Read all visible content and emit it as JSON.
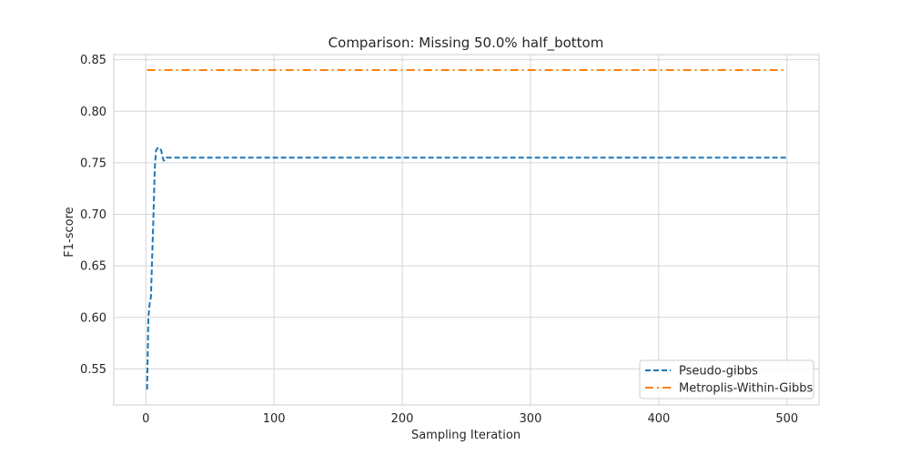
{
  "chart_data": {
    "type": "line",
    "title": "Comparison: Missing 50.0% half_bottom",
    "xlabel": "Sampling Iteration",
    "ylabel": "F1-score",
    "xlim": [
      -25,
      525
    ],
    "ylim": [
      0.515,
      0.855
    ],
    "xticks": [
      0,
      100,
      200,
      300,
      400,
      500
    ],
    "xtick_labels": [
      "0",
      "100",
      "200",
      "300",
      "400",
      "500"
    ],
    "yticks": [
      0.55,
      0.6,
      0.65,
      0.7,
      0.75,
      0.8,
      0.85
    ],
    "ytick_labels": [
      "0.55",
      "0.60",
      "0.65",
      "0.70",
      "0.75",
      "0.80",
      "0.85"
    ],
    "grid": true,
    "legend_position": "lower-right",
    "series": [
      {
        "name": "Pseudo-gibbs",
        "color": "#1f77b4",
        "style": "dashed",
        "x": [
          1,
          2,
          3,
          4,
          5,
          6,
          7,
          8,
          9,
          10,
          11,
          12,
          13,
          14,
          15,
          16,
          17,
          18,
          20,
          500
        ],
        "y": [
          0.53,
          0.6,
          0.613,
          0.62,
          0.66,
          0.7,
          0.745,
          0.762,
          0.764,
          0.765,
          0.764,
          0.762,
          0.756,
          0.752,
          0.753,
          0.755,
          0.755,
          0.755,
          0.755,
          0.755
        ]
      },
      {
        "name": "Metroplis-Within-Gibbs",
        "color": "#ff7f0e",
        "style": "dashdot",
        "x": [
          1,
          500
        ],
        "y": [
          0.84,
          0.84
        ]
      }
    ]
  }
}
